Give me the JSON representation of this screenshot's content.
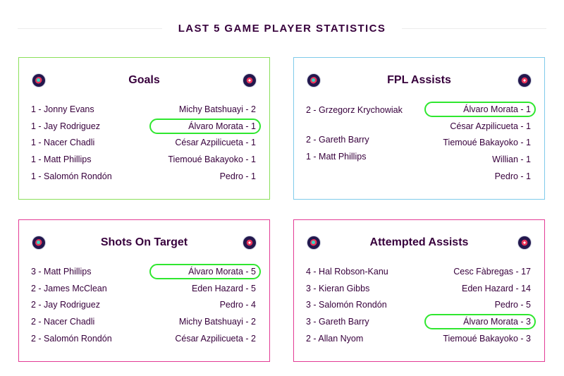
{
  "page": {
    "title": "LAST 5 GAME PLAYER STATISTICS"
  },
  "colors": {
    "goals": "#8ae05a",
    "fpl_assists": "#7fcbea",
    "shots_on_target": "#e33c95",
    "attempted_assists": "#e33c95",
    "highlight": "#2fe72f"
  },
  "cards": [
    {
      "title": "Goals",
      "left_icon": "club-crest-icon",
      "right_icon": "club-crest-icon",
      "left": [
        "1 - Jonny Evans",
        "1 - Jay Rodriguez",
        "1 - Nacer Chadli",
        "1 - Matt Phillips",
        "1 - Salomón Rondón"
      ],
      "right": [
        "Michy Batshuayi - 2",
        "Álvaro Morata - 1",
        "César Azpilicueta - 1",
        "Tiemoué Bakayoko - 1",
        "Pedro - 1"
      ]
    },
    {
      "title": "FPL Assists",
      "left_icon": "club-crest-icon",
      "right_icon": "club-crest-icon",
      "left": [
        "2 - Grzegorz Krychowiak",
        "2 - Gareth Barry",
        "1 - Matt Phillips"
      ],
      "right": [
        "Álvaro Morata - 1",
        "César Azpilicueta - 1",
        "Tiemoué Bakayoko - 1",
        "Willian - 1",
        "Pedro - 1"
      ]
    },
    {
      "title": "Shots On Target",
      "left_icon": "club-crest-icon",
      "right_icon": "club-crest-icon",
      "left": [
        "3 - Matt Phillips",
        "2 - James McClean",
        "2 - Jay Rodriguez",
        "2 - Nacer Chadli",
        "2 - Salomón Rondón"
      ],
      "right": [
        "Álvaro Morata - 5",
        "Eden Hazard - 5",
        "Pedro - 4",
        "Michy Batshuayi - 2",
        "César Azpilicueta - 2"
      ]
    },
    {
      "title": "Attempted Assists",
      "left_icon": "club-crest-icon",
      "right_icon": "club-crest-icon",
      "left": [
        "4 - Hal Robson-Kanu",
        "3 - Kieran Gibbs",
        "3 - Salomón Rondón",
        "3 - Gareth Barry",
        "2 - Allan Nyom"
      ],
      "right": [
        "Cesc Fàbregas - 17",
        "Eden Hazard - 14",
        "Pedro - 5",
        "Álvaro Morata - 3",
        "Tiemoué Bakayoko - 3"
      ]
    }
  ]
}
